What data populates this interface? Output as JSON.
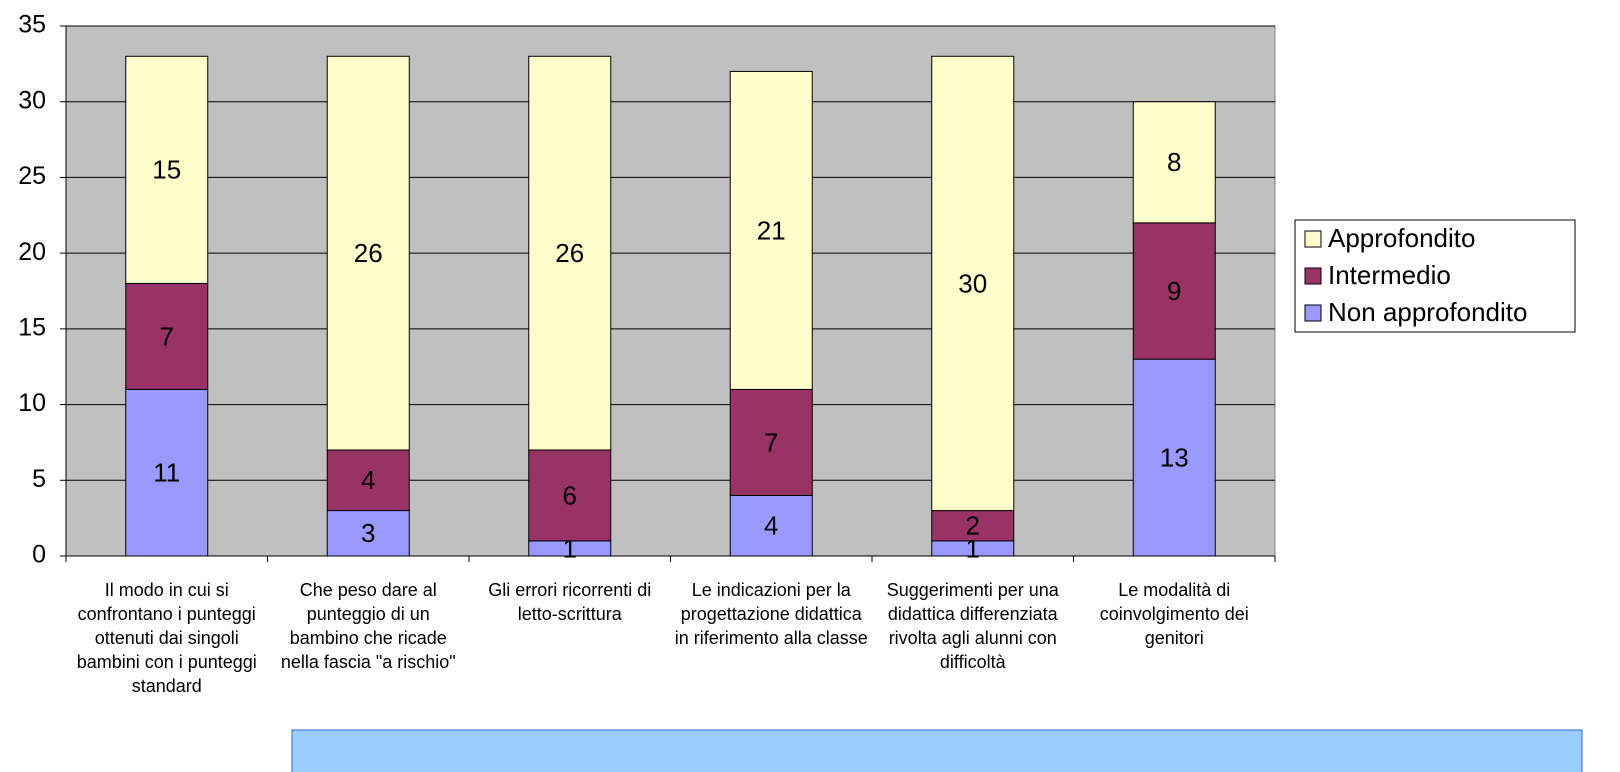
{
  "chart_data": {
    "type": "bar",
    "stacked": true,
    "categories": [
      "Il modo in cui si confrontano i punteggi ottenuti dai singoli bambini con i punteggi standard",
      "Che peso dare al punteggio di un bambino che ricade nella fascia \"a rischio\"",
      "Gli  errori ricorrenti di letto-scrittura",
      "Le indicazioni per la progettazione didattica in riferimento alla classe",
      "Suggerimenti per una didattica differenziata rivolta agli alunni con difficoltà",
      "Le modalità di coinvolgimento dei genitori"
    ],
    "series": [
      {
        "name": "Non approfondito",
        "color": "#9999ff",
        "values": [
          11,
          3,
          1,
          4,
          1,
          13
        ]
      },
      {
        "name": "Intermedio",
        "color": "#993366",
        "values": [
          7,
          4,
          6,
          7,
          2,
          9
        ]
      },
      {
        "name": "Approfondito",
        "color": "#ffffcc",
        "values": [
          15,
          26,
          26,
          21,
          30,
          8
        ]
      }
    ],
    "ylim": [
      0,
      35
    ],
    "yticks": [
      0,
      5,
      10,
      15,
      20,
      25,
      30,
      35
    ],
    "grid": true,
    "legend": "right"
  }
}
